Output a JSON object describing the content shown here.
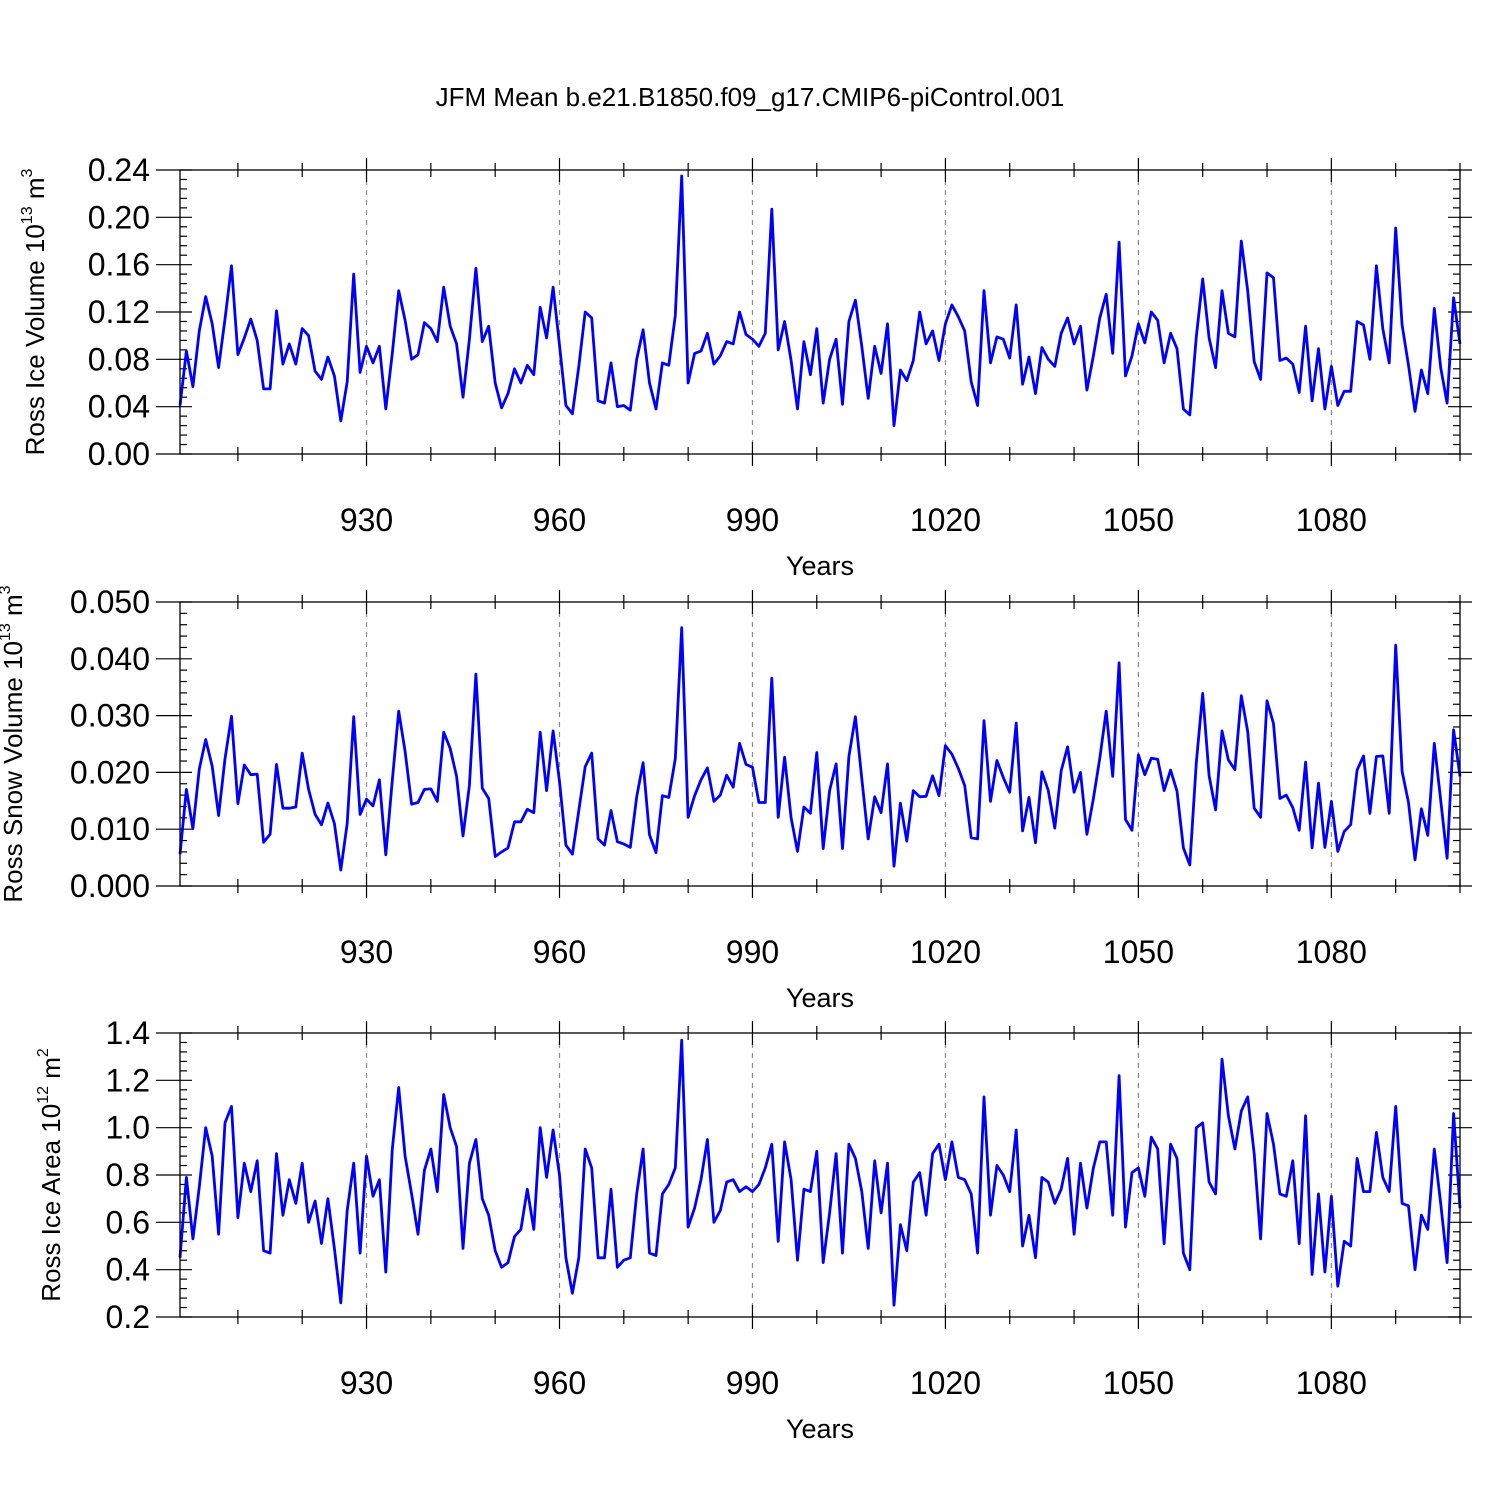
{
  "figure": {
    "title": "JFM Mean b.e21.B1850.f09_g17.CMIP6-piControl.001",
    "line_color": "#0000ff",
    "grid_color": "#8a8a8a"
  },
  "chart_data": [
    {
      "type": "line",
      "title": "JFM Mean b.e21.B1850.f09_g17.CMIP6-piControl.001",
      "ylabel_prefix": "Ross Ice Volume 10",
      "ylabel_exp": "13",
      "ylabel_unit": " m",
      "ylabel_unit_exp": "3",
      "xlabel": "Years",
      "xlim": [
        901,
        1100
      ],
      "ylim": [
        0,
        0.24
      ],
      "xticks": [
        930,
        960,
        990,
        1020,
        1050,
        1080
      ],
      "xtick_labels": [
        "930",
        "960",
        "990",
        "1020",
        "1050",
        "1080"
      ],
      "yticks": [
        0.0,
        0.04,
        0.08,
        0.12,
        0.16,
        0.2,
        0.24
      ],
      "ytick_labels": [
        "0.00",
        "0.04",
        "0.08",
        "0.12",
        "0.16",
        "0.20",
        "0.24"
      ],
      "x_start": 901,
      "values": [
        0.041,
        0.087,
        0.057,
        0.104,
        0.133,
        0.11,
        0.073,
        0.114,
        0.159,
        0.084,
        0.098,
        0.114,
        0.096,
        0.055,
        0.055,
        0.121,
        0.076,
        0.093,
        0.076,
        0.106,
        0.1,
        0.07,
        0.063,
        0.082,
        0.066,
        0.028,
        0.061,
        0.152,
        0.069,
        0.091,
        0.077,
        0.091,
        0.038,
        0.085,
        0.138,
        0.113,
        0.08,
        0.084,
        0.111,
        0.106,
        0.095,
        0.141,
        0.108,
        0.093,
        0.048,
        0.097,
        0.157,
        0.095,
        0.108,
        0.06,
        0.039,
        0.051,
        0.072,
        0.06,
        0.075,
        0.067,
        0.124,
        0.098,
        0.141,
        0.092,
        0.041,
        0.034,
        0.074,
        0.12,
        0.115,
        0.045,
        0.043,
        0.077,
        0.04,
        0.041,
        0.037,
        0.08,
        0.105,
        0.06,
        0.038,
        0.077,
        0.075,
        0.117,
        0.235,
        0.06,
        0.085,
        0.087,
        0.102,
        0.076,
        0.083,
        0.095,
        0.093,
        0.12,
        0.101,
        0.097,
        0.091,
        0.102,
        0.207,
        0.088,
        0.112,
        0.079,
        0.038,
        0.095,
        0.067,
        0.106,
        0.043,
        0.08,
        0.097,
        0.042,
        0.112,
        0.13,
        0.091,
        0.047,
        0.091,
        0.068,
        0.11,
        0.024,
        0.071,
        0.062,
        0.079,
        0.12,
        0.093,
        0.104,
        0.079,
        0.11,
        0.126,
        0.116,
        0.104,
        0.061,
        0.041,
        0.138,
        0.077,
        0.099,
        0.097,
        0.081,
        0.126,
        0.059,
        0.082,
        0.051,
        0.09,
        0.08,
        0.074,
        0.102,
        0.115,
        0.093,
        0.108,
        0.054,
        0.083,
        0.115,
        0.135,
        0.085,
        0.179,
        0.066,
        0.083,
        0.11,
        0.094,
        0.12,
        0.113,
        0.077,
        0.102,
        0.089,
        0.038,
        0.033,
        0.099,
        0.148,
        0.098,
        0.073,
        0.138,
        0.102,
        0.099,
        0.18,
        0.138,
        0.078,
        0.063,
        0.153,
        0.149,
        0.079,
        0.081,
        0.076,
        0.052,
        0.108,
        0.045,
        0.089,
        0.038,
        0.074,
        0.041,
        0.053,
        0.053,
        0.112,
        0.109,
        0.08,
        0.159,
        0.106,
        0.077,
        0.191,
        0.109,
        0.075,
        0.036,
        0.071,
        0.051,
        0.123,
        0.073,
        0.043,
        0.132,
        0.093
      ]
    },
    {
      "type": "line",
      "ylabel_prefix": "Ross Snow Volume 10",
      "ylabel_exp": "13",
      "ylabel_unit": " m",
      "ylabel_unit_exp": "3",
      "xlabel": "Years",
      "xlim": [
        901,
        1100
      ],
      "ylim": [
        0,
        0.05
      ],
      "xticks": [
        930,
        960,
        990,
        1020,
        1050,
        1080
      ],
      "xtick_labels": [
        "930",
        "960",
        "990",
        "1020",
        "1050",
        "1080"
      ],
      "yticks": [
        0.0,
        0.01,
        0.02,
        0.03,
        0.04,
        0.05
      ],
      "ytick_labels": [
        "0.000",
        "0.010",
        "0.020",
        "0.030",
        "0.040",
        "0.050"
      ],
      "x_start": 901,
      "values": [
        0.0056,
        0.017,
        0.0101,
        0.0206,
        0.0258,
        0.0211,
        0.0124,
        0.0224,
        0.0299,
        0.0145,
        0.0213,
        0.0196,
        0.0197,
        0.0077,
        0.0091,
        0.0214,
        0.0137,
        0.0137,
        0.0139,
        0.0234,
        0.017,
        0.0126,
        0.0108,
        0.0146,
        0.011,
        0.0028,
        0.011,
        0.0298,
        0.0126,
        0.0153,
        0.0141,
        0.0187,
        0.0055,
        0.0186,
        0.0308,
        0.0237,
        0.0144,
        0.0147,
        0.017,
        0.0171,
        0.0149,
        0.0271,
        0.0242,
        0.0193,
        0.0088,
        0.0177,
        0.0373,
        0.0172,
        0.0154,
        0.0052,
        0.006,
        0.0067,
        0.0113,
        0.0113,
        0.0135,
        0.0129,
        0.0271,
        0.0168,
        0.0273,
        0.0184,
        0.0072,
        0.0056,
        0.0133,
        0.021,
        0.0234,
        0.0083,
        0.0072,
        0.0133,
        0.0078,
        0.0074,
        0.0068,
        0.0157,
        0.0217,
        0.009,
        0.0059,
        0.0159,
        0.0156,
        0.0224,
        0.0455,
        0.0121,
        0.0159,
        0.0187,
        0.0208,
        0.0149,
        0.016,
        0.0195,
        0.0174,
        0.0251,
        0.0214,
        0.0209,
        0.0147,
        0.0147,
        0.0366,
        0.0121,
        0.0227,
        0.012,
        0.0061,
        0.0139,
        0.0128,
        0.0235,
        0.0066,
        0.0168,
        0.0215,
        0.0066,
        0.0228,
        0.0298,
        0.0189,
        0.0083,
        0.0157,
        0.0129,
        0.0215,
        0.0035,
        0.0146,
        0.0079,
        0.0168,
        0.0157,
        0.0158,
        0.0194,
        0.0159,
        0.0247,
        0.0232,
        0.0207,
        0.0177,
        0.0085,
        0.0083,
        0.0291,
        0.0149,
        0.0221,
        0.0191,
        0.0165,
        0.0287,
        0.0097,
        0.0156,
        0.0076,
        0.0201,
        0.0168,
        0.0102,
        0.0203,
        0.0245,
        0.0165,
        0.02,
        0.0091,
        0.0154,
        0.0225,
        0.0308,
        0.0193,
        0.0393,
        0.0117,
        0.0098,
        0.0231,
        0.0196,
        0.0225,
        0.0223,
        0.0168,
        0.0204,
        0.0167,
        0.0067,
        0.0037,
        0.0217,
        0.0339,
        0.0194,
        0.0134,
        0.0273,
        0.0222,
        0.0205,
        0.0335,
        0.0272,
        0.0137,
        0.0121,
        0.0326,
        0.0286,
        0.0154,
        0.016,
        0.0138,
        0.0098,
        0.0218,
        0.0067,
        0.0181,
        0.0068,
        0.0149,
        0.0061,
        0.0096,
        0.0108,
        0.0204,
        0.0229,
        0.0128,
        0.0228,
        0.0229,
        0.0128,
        0.0424,
        0.0202,
        0.0147,
        0.0046,
        0.0136,
        0.0089,
        0.0251,
        0.0151,
        0.0049,
        0.0275,
        0.0193
      ]
    },
    {
      "type": "line",
      "ylabel_prefix": "Ross Ice Area 10",
      "ylabel_exp": "12",
      "ylabel_unit": " m",
      "ylabel_unit_exp": "2",
      "xlabel": "Years",
      "xlim": [
        901,
        1100
      ],
      "ylim": [
        0.2,
        1.4
      ],
      "xticks": [
        930,
        960,
        990,
        1020,
        1050,
        1080
      ],
      "xtick_labels": [
        "930",
        "960",
        "990",
        "1020",
        "1050",
        "1080"
      ],
      "yticks": [
        0.2,
        0.4,
        0.6,
        0.8,
        1.0,
        1.2,
        1.4
      ],
      "ytick_labels": [
        "0.2",
        "0.4",
        "0.6",
        "0.8",
        "1.0",
        "1.2",
        "1.4"
      ],
      "x_start": 901,
      "values": [
        0.45,
        0.79,
        0.53,
        0.75,
        1.0,
        0.88,
        0.55,
        1.02,
        1.09,
        0.62,
        0.85,
        0.73,
        0.86,
        0.48,
        0.47,
        0.89,
        0.63,
        0.78,
        0.68,
        0.85,
        0.6,
        0.69,
        0.51,
        0.7,
        0.49,
        0.26,
        0.65,
        0.85,
        0.47,
        0.88,
        0.71,
        0.78,
        0.39,
        0.91,
        1.17,
        0.88,
        0.72,
        0.55,
        0.82,
        0.91,
        0.73,
        1.14,
        1.0,
        0.92,
        0.49,
        0.85,
        0.95,
        0.7,
        0.63,
        0.48,
        0.41,
        0.43,
        0.54,
        0.57,
        0.74,
        0.57,
        1.0,
        0.79,
        0.99,
        0.8,
        0.45,
        0.3,
        0.45,
        0.91,
        0.83,
        0.45,
        0.45,
        0.74,
        0.41,
        0.44,
        0.45,
        0.72,
        0.91,
        0.47,
        0.46,
        0.72,
        0.76,
        0.83,
        1.37,
        0.58,
        0.66,
        0.78,
        0.95,
        0.6,
        0.65,
        0.77,
        0.78,
        0.73,
        0.75,
        0.73,
        0.76,
        0.83,
        0.93,
        0.52,
        0.94,
        0.78,
        0.44,
        0.74,
        0.73,
        0.9,
        0.43,
        0.64,
        0.89,
        0.47,
        0.93,
        0.87,
        0.73,
        0.49,
        0.86,
        0.64,
        0.85,
        0.25,
        0.59,
        0.48,
        0.77,
        0.81,
        0.63,
        0.89,
        0.93,
        0.78,
        0.94,
        0.79,
        0.78,
        0.72,
        0.47,
        1.13,
        0.63,
        0.84,
        0.8,
        0.73,
        0.99,
        0.5,
        0.63,
        0.45,
        0.79,
        0.77,
        0.68,
        0.74,
        0.87,
        0.55,
        0.85,
        0.66,
        0.83,
        0.94,
        0.94,
        0.63,
        1.22,
        0.58,
        0.81,
        0.83,
        0.71,
        0.96,
        0.91,
        0.51,
        0.93,
        0.87,
        0.47,
        0.4,
        1.0,
        1.02,
        0.77,
        0.72,
        1.29,
        1.05,
        0.91,
        1.07,
        1.13,
        0.89,
        0.53,
        1.06,
        0.93,
        0.72,
        0.71,
        0.86,
        0.51,
        1.05,
        0.38,
        0.72,
        0.39,
        0.71,
        0.33,
        0.52,
        0.5,
        0.87,
        0.73,
        0.73,
        0.98,
        0.79,
        0.73,
        1.09,
        0.68,
        0.67,
        0.4,
        0.63,
        0.57,
        0.91,
        0.68,
        0.43,
        1.06,
        0.66
      ]
    }
  ]
}
